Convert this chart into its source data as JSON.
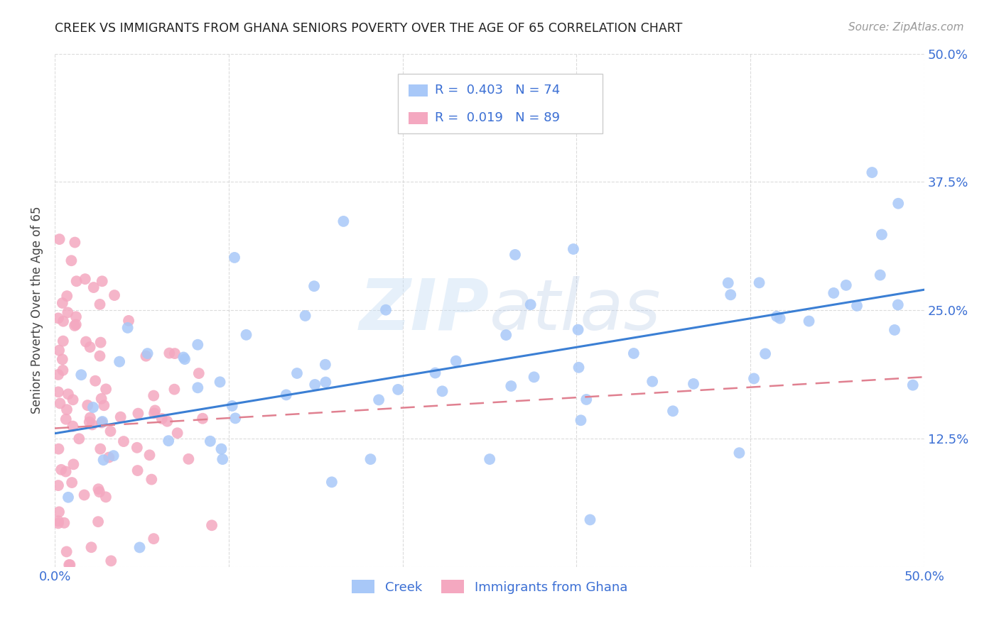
{
  "title": "CREEK VS IMMIGRANTS FROM GHANA SENIORS POVERTY OVER THE AGE OF 65 CORRELATION CHART",
  "source": "Source: ZipAtlas.com",
  "ylabel": "Seniors Poverty Over the Age of 65",
  "xlim": [
    0.0,
    0.5
  ],
  "ylim": [
    0.0,
    0.5
  ],
  "xtick_vals": [
    0.0,
    0.1,
    0.2,
    0.3,
    0.4,
    0.5
  ],
  "ytick_vals": [
    0.0,
    0.125,
    0.25,
    0.375,
    0.5
  ],
  "xticklabels": [
    "0.0%",
    "",
    "",
    "",
    "",
    "50.0%"
  ],
  "yticklabels_right": [
    "",
    "12.5%",
    "25.0%",
    "37.5%",
    "50.0%"
  ],
  "creek_R": 0.403,
  "creek_N": 74,
  "ghana_R": 0.019,
  "ghana_N": 89,
  "creek_color": "#a8c8f8",
  "ghana_color": "#f4a8c0",
  "creek_line_color": "#3b7fd4",
  "ghana_line_color": "#e08090",
  "legend_text_color": "#3b6fd4",
  "label_color": "#3b6fd4",
  "watermark_color": "#ddeeff",
  "creek_line_y0": 0.13,
  "creek_line_y1": 0.27,
  "ghana_line_y0": 0.135,
  "ghana_line_y1": 0.185
}
